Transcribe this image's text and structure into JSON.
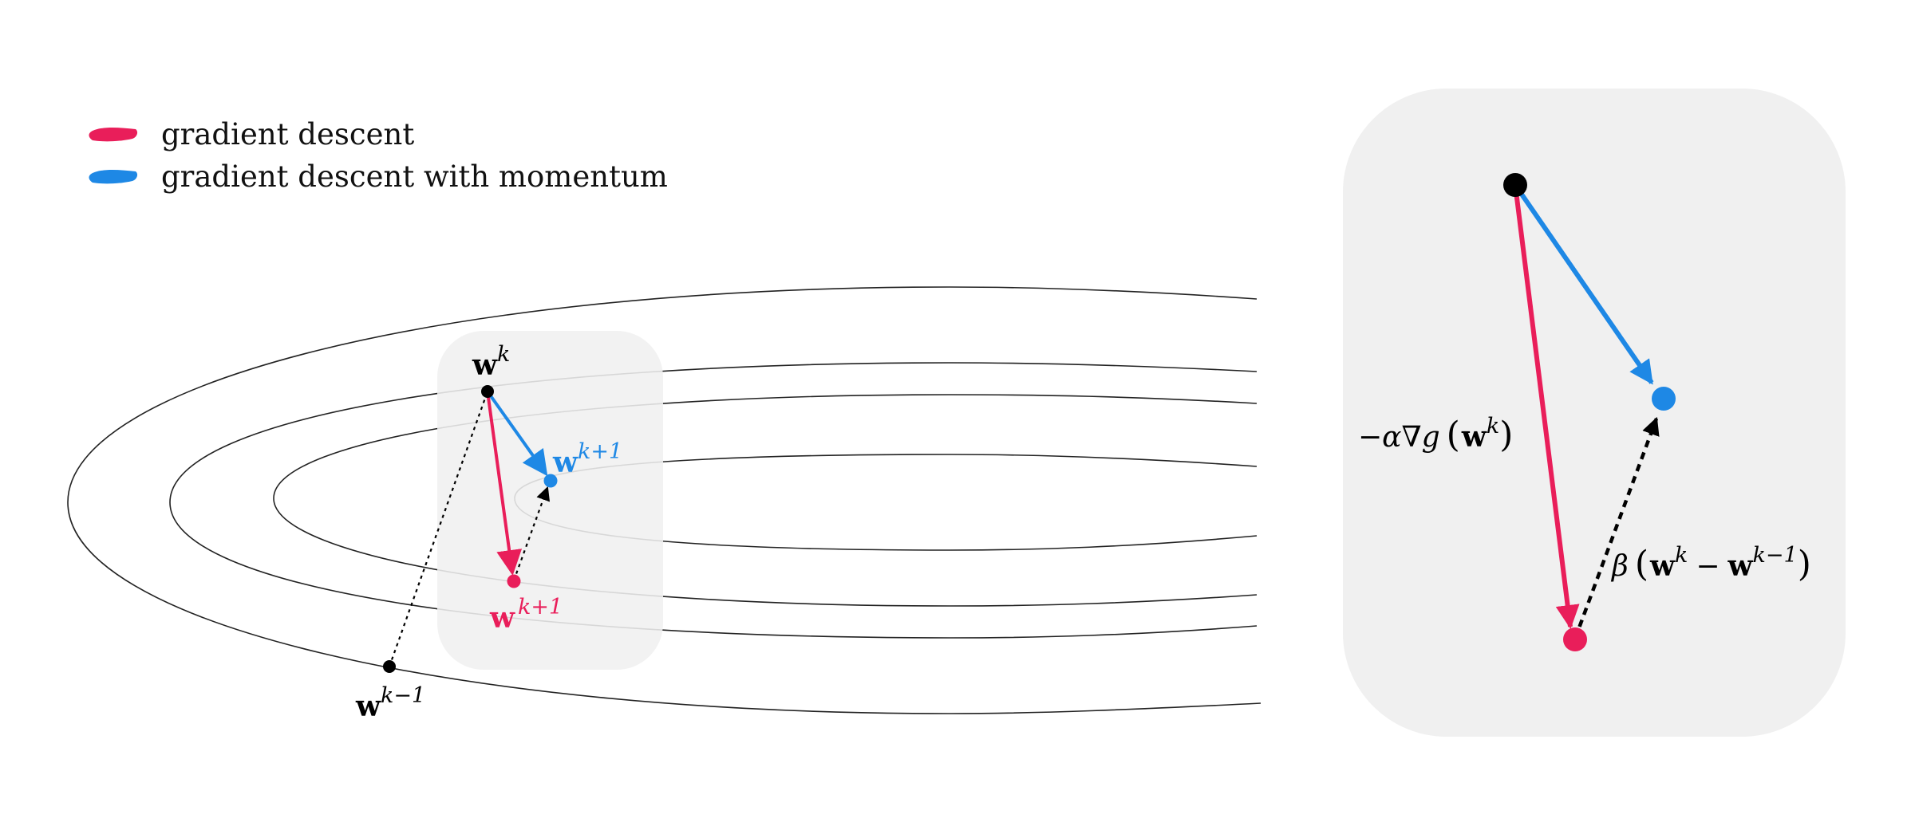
{
  "colors": {
    "gd": "#e91e5a",
    "momentum": "#1e88e5",
    "point": "#000000",
    "zoom_bg": "#f0f0f0",
    "contour": "#222222"
  },
  "legend": {
    "items": [
      {
        "label": "gradient descent",
        "color": "#e91e5a"
      },
      {
        "label": "gradient descent with momentum",
        "color": "#1e88e5"
      }
    ]
  },
  "labels": {
    "bold_w": "w",
    "sup_k": "k",
    "sup_k_plus_1": "k+1",
    "sup_k_minus_1": "k−1",
    "gradient_prefix": "−α∇g",
    "beta": "β",
    "minus": "−",
    "paren_open": "(",
    "paren_close": ")"
  },
  "icons": {
    "legend_swatch": "brush-stroke-icon"
  }
}
